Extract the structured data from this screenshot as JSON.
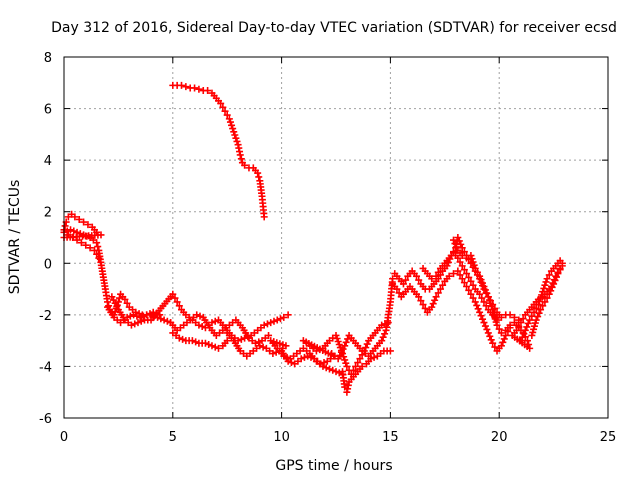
{
  "chart_data": {
    "type": "scatter",
    "title": "Day 312 of 2016, Sidereal Day-to-day VTEC variation (SDTVAR) for receiver ecsd",
    "xlabel": "GPS time / hours",
    "ylabel": "SDTVAR / TECUs",
    "xlim": [
      0,
      25
    ],
    "ylim": [
      -6,
      8
    ],
    "x_ticks": [
      0,
      5,
      10,
      15,
      20,
      25
    ],
    "y_ticks": [
      -6,
      -4,
      -2,
      0,
      2,
      4,
      6,
      8
    ],
    "grid": true,
    "marker": "+",
    "color": "#ff0000",
    "series": [
      {
        "name": "ecsd",
        "points": [
          [
            0.0,
            1.3
          ],
          [
            0.1,
            1.6
          ],
          [
            0.2,
            1.8
          ],
          [
            0.35,
            1.9
          ],
          [
            0.5,
            1.8
          ],
          [
            0.7,
            1.7
          ],
          [
            0.9,
            1.6
          ],
          [
            1.1,
            1.5
          ],
          [
            1.3,
            1.4
          ],
          [
            1.5,
            1.2
          ],
          [
            1.7,
            1.1
          ],
          [
            0.0,
            1.0
          ],
          [
            0.2,
            1.1
          ],
          [
            0.4,
            1.0
          ],
          [
            0.6,
            0.9
          ],
          [
            0.8,
            0.8
          ],
          [
            1.0,
            0.7
          ],
          [
            1.2,
            0.6
          ],
          [
            1.4,
            0.5
          ],
          [
            1.6,
            0.2
          ],
          [
            0.0,
            1.2
          ],
          [
            0.3,
            1.3
          ],
          [
            0.6,
            1.2
          ],
          [
            0.9,
            1.1
          ],
          [
            1.2,
            1.0
          ],
          [
            1.5,
            0.8
          ],
          [
            1.6,
            0.5
          ],
          [
            1.9,
            -1.0
          ],
          [
            2.0,
            -1.5
          ],
          [
            2.1,
            -1.8
          ],
          [
            2.3,
            -2.0
          ],
          [
            2.5,
            -1.5
          ],
          [
            2.6,
            -1.2
          ],
          [
            2.8,
            -1.4
          ],
          [
            3.0,
            -1.7
          ],
          [
            3.3,
            -1.9
          ],
          [
            3.6,
            -2.0
          ],
          [
            4.0,
            -2.0
          ],
          [
            4.3,
            -2.1
          ],
          [
            4.6,
            -2.2
          ],
          [
            4.9,
            -2.3
          ],
          [
            2.0,
            -1.7
          ],
          [
            2.3,
            -2.1
          ],
          [
            2.6,
            -2.3
          ],
          [
            2.9,
            -2.1
          ],
          [
            3.2,
            -2.0
          ],
          [
            3.5,
            -2.1
          ],
          [
            3.8,
            -2.0
          ],
          [
            4.1,
            -1.9
          ],
          [
            4.4,
            -2.0
          ],
          [
            2.2,
            -1.3
          ],
          [
            2.5,
            -1.8
          ],
          [
            2.8,
            -2.2
          ],
          [
            3.1,
            -2.4
          ],
          [
            3.4,
            -2.3
          ],
          [
            3.7,
            -2.2
          ],
          [
            4.0,
            -2.2
          ],
          [
            5.0,
            -1.2
          ],
          [
            5.2,
            -1.5
          ],
          [
            5.4,
            -1.8
          ],
          [
            5.6,
            -2.0
          ],
          [
            5.9,
            -2.2
          ],
          [
            6.2,
            -2.4
          ],
          [
            6.5,
            -2.5
          ],
          [
            6.8,
            -2.3
          ],
          [
            7.1,
            -2.2
          ],
          [
            7.4,
            -2.5
          ],
          [
            7.7,
            -2.8
          ],
          [
            8.0,
            -3.0
          ],
          [
            8.3,
            -2.9
          ],
          [
            8.6,
            -2.8
          ],
          [
            8.9,
            -2.6
          ],
          [
            9.2,
            -2.4
          ],
          [
            9.5,
            -2.3
          ],
          [
            9.8,
            -2.2
          ],
          [
            10.1,
            -2.1
          ],
          [
            10.3,
            -2.0
          ],
          [
            5.0,
            -2.7
          ],
          [
            5.3,
            -2.9
          ],
          [
            5.6,
            -3.0
          ],
          [
            5.9,
            -3.0
          ],
          [
            6.2,
            -3.1
          ],
          [
            6.5,
            -3.1
          ],
          [
            6.8,
            -3.2
          ],
          [
            7.1,
            -3.3
          ],
          [
            7.3,
            -3.2
          ],
          [
            7.5,
            -3.0
          ],
          [
            4.9,
            -2.3
          ],
          [
            5.2,
            -2.6
          ],
          [
            5.5,
            -2.4
          ],
          [
            5.8,
            -2.2
          ],
          [
            6.1,
            -2.0
          ],
          [
            6.4,
            -2.1
          ],
          [
            6.7,
            -2.5
          ],
          [
            7.0,
            -2.8
          ],
          [
            7.3,
            -2.6
          ],
          [
            7.6,
            -2.4
          ],
          [
            7.9,
            -2.2
          ],
          [
            8.2,
            -2.5
          ],
          [
            8.5,
            -2.9
          ],
          [
            8.8,
            -3.1
          ],
          [
            9.1,
            -3.0
          ],
          [
            9.4,
            -2.8
          ],
          [
            7.5,
            -2.7
          ],
          [
            7.8,
            -3.0
          ],
          [
            8.1,
            -3.4
          ],
          [
            8.4,
            -3.6
          ],
          [
            8.7,
            -3.4
          ],
          [
            9.0,
            -3.2
          ],
          [
            9.3,
            -3.3
          ],
          [
            9.6,
            -3.5
          ],
          [
            9.9,
            -3.4
          ],
          [
            10.2,
            -3.2
          ],
          [
            9.5,
            -3.0
          ],
          [
            9.8,
            -3.3
          ],
          [
            10.1,
            -3.6
          ],
          [
            10.4,
            -3.7
          ],
          [
            10.7,
            -3.5
          ],
          [
            11.0,
            -3.3
          ],
          [
            11.3,
            -3.5
          ],
          [
            11.6,
            -3.8
          ],
          [
            11.9,
            -4.0
          ],
          [
            12.2,
            -4.1
          ],
          [
            12.5,
            -4.2
          ],
          [
            12.8,
            -4.3
          ],
          [
            10.0,
            -3.4
          ],
          [
            10.3,
            -3.8
          ],
          [
            10.6,
            -3.9
          ],
          [
            10.9,
            -3.7
          ],
          [
            11.2,
            -3.6
          ],
          [
            11.5,
            -3.7
          ],
          [
            11.8,
            -3.9
          ],
          [
            12.1,
            -3.8
          ],
          [
            12.4,
            -3.6
          ],
          [
            11.0,
            -3.0
          ],
          [
            11.3,
            -3.2
          ],
          [
            11.6,
            -3.4
          ],
          [
            11.9,
            -3.3
          ],
          [
            12.2,
            -3.0
          ],
          [
            12.5,
            -2.8
          ],
          [
            12.8,
            -3.5
          ],
          [
            13.0,
            -4.0
          ],
          [
            13.2,
            -4.3
          ],
          [
            13.4,
            -4.0
          ],
          [
            13.6,
            -3.7
          ],
          [
            13.8,
            -3.4
          ],
          [
            14.0,
            -3.0
          ],
          [
            14.3,
            -2.7
          ],
          [
            14.6,
            -2.4
          ],
          [
            14.9,
            -2.3
          ],
          [
            12.8,
            -4.2
          ],
          [
            12.9,
            -4.8
          ],
          [
            13.0,
            -5.0
          ],
          [
            13.1,
            -4.6
          ],
          [
            13.3,
            -4.4
          ],
          [
            13.5,
            -4.2
          ],
          [
            13.7,
            -4.0
          ],
          [
            13.9,
            -3.9
          ],
          [
            14.1,
            -3.7
          ],
          [
            14.4,
            -3.6
          ],
          [
            14.7,
            -3.4
          ],
          [
            15.0,
            -3.4
          ],
          [
            12.3,
            -3.5
          ],
          [
            12.6,
            -3.7
          ],
          [
            12.9,
            -3.2
          ],
          [
            13.1,
            -2.8
          ],
          [
            13.4,
            -3.1
          ],
          [
            13.7,
            -3.4
          ],
          [
            14.0,
            -3.6
          ],
          [
            14.3,
            -3.3
          ],
          [
            14.6,
            -3.0
          ],
          [
            14.8,
            -2.6
          ],
          [
            15.0,
            -1.5
          ],
          [
            15.1,
            -0.6
          ],
          [
            15.2,
            -0.4
          ],
          [
            15.4,
            -0.6
          ],
          [
            15.6,
            -0.8
          ],
          [
            15.8,
            -0.5
          ],
          [
            16.0,
            -0.3
          ],
          [
            16.2,
            -0.5
          ],
          [
            16.4,
            -0.8
          ],
          [
            16.6,
            -1.0
          ],
          [
            16.8,
            -1.0
          ],
          [
            17.0,
            -0.8
          ],
          [
            17.2,
            -0.6
          ],
          [
            17.4,
            -0.3
          ],
          [
            17.6,
            -0.1
          ],
          [
            17.8,
            0.3
          ],
          [
            18.0,
            0.6
          ],
          [
            18.1,
            1.0
          ],
          [
            18.3,
            0.6
          ],
          [
            18.5,
            0.3
          ],
          [
            18.7,
            0.0
          ],
          [
            18.9,
            -0.3
          ],
          [
            19.1,
            -0.6
          ],
          [
            19.3,
            -1.0
          ],
          [
            19.5,
            -1.3
          ],
          [
            19.7,
            -1.6
          ],
          [
            19.9,
            -1.9
          ],
          [
            20.1,
            -2.1
          ],
          [
            20.3,
            -2.0
          ],
          [
            20.5,
            -2.0
          ],
          [
            20.7,
            -2.1
          ],
          [
            20.9,
            -2.2
          ],
          [
            15.1,
            -0.8
          ],
          [
            15.3,
            -1.0
          ],
          [
            15.5,
            -1.3
          ],
          [
            15.7,
            -1.1
          ],
          [
            15.9,
            -0.9
          ],
          [
            16.1,
            -1.1
          ],
          [
            16.3,
            -1.3
          ],
          [
            16.5,
            -1.6
          ],
          [
            16.7,
            -1.9
          ],
          [
            16.9,
            -1.7
          ],
          [
            17.1,
            -1.3
          ],
          [
            17.3,
            -1.0
          ],
          [
            17.5,
            -0.7
          ],
          [
            17.7,
            -0.5
          ],
          [
            17.9,
            -0.4
          ],
          [
            18.1,
            -0.3
          ],
          [
            18.3,
            -0.6
          ],
          [
            18.5,
            -0.9
          ],
          [
            18.7,
            -1.2
          ],
          [
            18.9,
            -1.5
          ],
          [
            19.1,
            -1.9
          ],
          [
            19.3,
            -2.3
          ],
          [
            19.5,
            -2.7
          ],
          [
            19.7,
            -3.1
          ],
          [
            19.9,
            -3.4
          ],
          [
            20.1,
            -3.2
          ],
          [
            20.3,
            -2.8
          ],
          [
            20.5,
            -2.5
          ],
          [
            16.5,
            -0.2
          ],
          [
            16.7,
            -0.4
          ],
          [
            16.9,
            -0.6
          ],
          [
            17.1,
            -0.5
          ],
          [
            17.3,
            -0.2
          ],
          [
            17.5,
            0.0
          ],
          [
            17.7,
            0.2
          ],
          [
            17.9,
            0.4
          ],
          [
            18.1,
            0.2
          ],
          [
            18.3,
            -0.1
          ],
          [
            18.5,
            -0.4
          ],
          [
            18.7,
            -0.7
          ],
          [
            18.9,
            -1.0
          ],
          [
            19.1,
            -1.2
          ],
          [
            19.3,
            -1.5
          ],
          [
            19.5,
            -1.8
          ],
          [
            19.7,
            -2.0
          ],
          [
            19.9,
            -2.2
          ],
          [
            17.9,
            0.9
          ],
          [
            18.1,
            0.5
          ],
          [
            18.3,
            0.3
          ],
          [
            18.5,
            0.2
          ],
          [
            18.7,
            0.3
          ],
          [
            18.9,
            -0.2
          ],
          [
            19.1,
            -0.5
          ],
          [
            19.3,
            -0.9
          ],
          [
            19.5,
            -1.3
          ],
          [
            19.7,
            -1.8
          ],
          [
            19.9,
            -2.4
          ],
          [
            20.1,
            -2.7
          ],
          [
            20.3,
            -2.6
          ],
          [
            20.5,
            -2.4
          ],
          [
            20.7,
            -2.3
          ],
          [
            20.9,
            -2.5
          ],
          [
            21.1,
            -2.7
          ],
          [
            21.3,
            -3.0
          ],
          [
            21.4,
            -3.3
          ],
          [
            20.6,
            -2.8
          ],
          [
            20.8,
            -2.6
          ],
          [
            21.0,
            -2.3
          ],
          [
            21.2,
            -2.0
          ],
          [
            21.4,
            -1.8
          ],
          [
            21.6,
            -1.6
          ],
          [
            21.8,
            -1.4
          ],
          [
            22.0,
            -1.3
          ],
          [
            22.2,
            -1.1
          ],
          [
            22.4,
            -0.9
          ],
          [
            22.6,
            -0.5
          ],
          [
            22.8,
            -0.2
          ],
          [
            22.9,
            0.0
          ],
          [
            21.0,
            -3.0
          ],
          [
            21.2,
            -2.6
          ],
          [
            21.4,
            -2.2
          ],
          [
            21.6,
            -1.9
          ],
          [
            21.8,
            -1.6
          ],
          [
            22.0,
            -1.1
          ],
          [
            22.2,
            -0.6
          ],
          [
            22.4,
            -0.3
          ],
          [
            22.6,
            -0.1
          ],
          [
            22.8,
            0.1
          ],
          [
            21.5,
            -2.8
          ],
          [
            21.7,
            -2.2
          ],
          [
            21.9,
            -1.8
          ],
          [
            22.1,
            -1.5
          ],
          [
            22.3,
            -1.2
          ],
          [
            22.5,
            -0.8
          ],
          [
            22.7,
            -0.4
          ],
          [
            22.9,
            -0.1
          ],
          [
            5.0,
            6.9
          ],
          [
            5.2,
            6.9
          ],
          [
            5.4,
            6.9
          ],
          [
            5.6,
            6.85
          ],
          [
            5.8,
            6.8
          ],
          [
            6.0,
            6.8
          ],
          [
            6.2,
            6.75
          ],
          [
            6.4,
            6.7
          ],
          [
            6.6,
            6.7
          ],
          [
            6.8,
            6.6
          ],
          [
            7.0,
            6.4
          ],
          [
            7.2,
            6.2
          ],
          [
            7.4,
            5.9
          ],
          [
            7.6,
            5.6
          ],
          [
            7.8,
            5.1
          ],
          [
            8.0,
            4.6
          ],
          [
            8.1,
            4.2
          ],
          [
            8.2,
            3.9
          ],
          [
            8.3,
            3.8
          ],
          [
            8.5,
            3.7
          ],
          [
            8.7,
            3.7
          ],
          [
            8.9,
            3.5
          ],
          [
            9.0,
            3.2
          ],
          [
            9.1,
            2.6
          ],
          [
            9.15,
            2.2
          ],
          [
            9.2,
            1.8
          ]
        ]
      }
    ]
  }
}
